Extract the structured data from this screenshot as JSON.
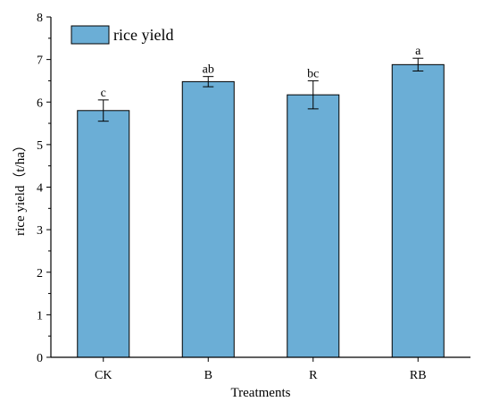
{
  "chart_data": {
    "type": "bar",
    "categories": [
      "CK",
      "B",
      "R",
      "RB"
    ],
    "series": [
      {
        "name": "rice yield",
        "values": [
          5.8,
          6.48,
          6.17,
          6.88
        ],
        "errors": [
          0.25,
          0.12,
          0.33,
          0.15
        ],
        "significance": [
          "c",
          "ab",
          "bc",
          "a"
        ],
        "color": "#6baed6"
      }
    ],
    "xlabel": "Treatments",
    "ylabel": "rice yield（t/ha）",
    "ylim": [
      0,
      8
    ],
    "yticks": [
      0,
      1,
      2,
      3,
      4,
      5,
      6,
      7,
      8
    ],
    "grid": false,
    "legend_position": "top-left"
  }
}
